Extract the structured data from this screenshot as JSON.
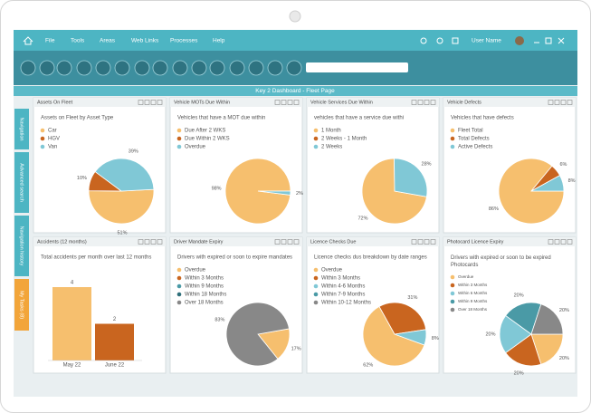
{
  "menu": [
    "File",
    "Tools",
    "Areas",
    "Web Links",
    "Processes",
    "Help"
  ],
  "user": "User Name",
  "title": "Key 2 Dashboard - Fleet Page",
  "side_tabs": [
    "Navigation",
    "Advanced search",
    "Navigation history",
    "My Tasks (8)"
  ],
  "panels": [
    {
      "title": "Assets On Fleet",
      "subtitle": "Assets on Fleet by Asset Type",
      "type": "pie",
      "items": [
        {
          "label": "Car",
          "color": "#f6bf6e",
          "value": 51,
          "value_label": "51%"
        },
        {
          "label": "HGV",
          "color": "#c9651f",
          "value": 10,
          "value_label": "10%"
        },
        {
          "label": "Van",
          "color": "#80c8d6",
          "value": 39,
          "value_label": "39%"
        }
      ]
    },
    {
      "title": "Vehicle MOTs Due Within",
      "subtitle": "Vehicles that have a MOT due within",
      "type": "pie",
      "items": [
        {
          "label": "Due After 2 WKS",
          "color": "#f6bf6e",
          "value": 98,
          "value_label": "98%"
        },
        {
          "label": "Due Within 2 WKS",
          "color": "#c9651f",
          "value": null,
          "value_label": null
        },
        {
          "label": "Overdue",
          "color": "#80c8d6",
          "value": 2,
          "value_label": "2%"
        }
      ]
    },
    {
      "title": "Vehicle Services Due Within",
      "subtitle": "vehicles that have a service due withi",
      "type": "pie",
      "items": [
        {
          "label": "1 Month",
          "color": "#f6bf6e",
          "value": 72,
          "value_label": "72%"
        },
        {
          "label": "2 Weeks - 1 Month",
          "color": "#c9651f",
          "value": null,
          "value_label": null
        },
        {
          "label": "2 Weeks",
          "color": "#80c8d6",
          "value": 28,
          "value_label": "28%"
        }
      ]
    },
    {
      "title": "Vehicle Defects",
      "subtitle": "Vehicles that have defects",
      "type": "pie",
      "items": [
        {
          "label": "Fleet Total",
          "color": "#f6bf6e",
          "value": 86,
          "value_label": "86%"
        },
        {
          "label": "Total Defects",
          "color": "#c9651f",
          "value": 6,
          "value_label": "6%"
        },
        {
          "label": "Active Defects",
          "color": "#80c8d6",
          "value": 8,
          "value_label": "8%"
        }
      ]
    },
    {
      "title": "Accidents (12 months)",
      "subtitle": "Total accidents per month over last 12 months",
      "type": "bar",
      "items": [
        {
          "label": "May 22",
          "color": "#f6bf6e",
          "value": 4
        },
        {
          "label": "June 22",
          "color": "#c9651f",
          "value": 2
        }
      ]
    },
    {
      "title": "Driver Mandate Expiry",
      "subtitle": "Drivers with expired or soon to expire mandates",
      "type": "pie",
      "items": [
        {
          "label": "Overdue",
          "color": "#f6bf6e",
          "value": 17,
          "value_label": "17%"
        },
        {
          "label": "Within 3 Months",
          "color": "#c9651f",
          "value": null,
          "value_label": null
        },
        {
          "label": "Within 9 Months",
          "color": "#4a9aa6",
          "value": null,
          "value_label": null
        },
        {
          "label": "Within 18 Months",
          "color": "#2f6f7a",
          "value": null,
          "value_label": null
        },
        {
          "label": "Over 18 Months",
          "color": "#888888",
          "value": 83,
          "value_label": "83%"
        }
      ]
    },
    {
      "title": "Licence Checks Due",
      "subtitle": "Licence checks dus breakdown by date ranges",
      "type": "pie",
      "items": [
        {
          "label": "Overdue",
          "color": "#f6bf6e",
          "value": 62,
          "value_label": "62%"
        },
        {
          "label": "Within 3 Months",
          "color": "#c9651f",
          "value": 31,
          "value_label": "31%"
        },
        {
          "label": "Within 4-6 Months",
          "color": "#80c8d6",
          "value": 8,
          "value_label": "8%"
        },
        {
          "label": "Within 7-9 Months",
          "color": "#4a9aa6",
          "value": null,
          "value_label": null
        },
        {
          "label": "Within 10-12 Months",
          "color": "#888888",
          "value": null,
          "value_label": null
        }
      ]
    },
    {
      "title": "Photocard Licence Expiry",
      "subtitle": "Drivers with expired or soon to be expired Photocards",
      "type": "pie",
      "items": [
        {
          "label": "Overdue",
          "color": "#f6bf6e",
          "value": 20,
          "value_label": "20%"
        },
        {
          "label": "Within 3 Months",
          "color": "#c9651f",
          "value": 20,
          "value_label": "20%"
        },
        {
          "label": "Within 6 Months",
          "color": "#80c8d6",
          "value": 20,
          "value_label": "20%"
        },
        {
          "label": "Within 9 Months",
          "color": "#4a9aa6",
          "value": 20,
          "value_label": "20%"
        },
        {
          "label": "Over 18 Months",
          "color": "#888888",
          "value": 20,
          "value_label": "20%"
        }
      ]
    }
  ]
}
